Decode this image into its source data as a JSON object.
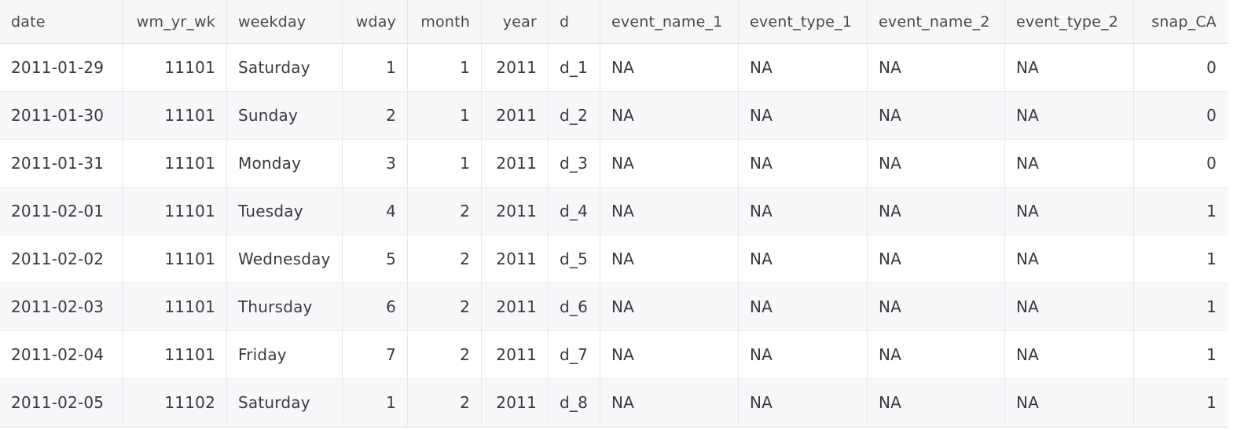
{
  "table": {
    "columns": [
      {
        "label": "date",
        "align": "left"
      },
      {
        "label": "wm_yr_wk",
        "align": "right"
      },
      {
        "label": "weekday",
        "align": "left"
      },
      {
        "label": "wday",
        "align": "right"
      },
      {
        "label": "month",
        "align": "right"
      },
      {
        "label": "year",
        "align": "right"
      },
      {
        "label": "d",
        "align": "left"
      },
      {
        "label": "event_name_1",
        "align": "left"
      },
      {
        "label": "event_type_1",
        "align": "left"
      },
      {
        "label": "event_name_2",
        "align": "left"
      },
      {
        "label": "event_type_2",
        "align": "left"
      },
      {
        "label": "snap_CA",
        "align": "right"
      }
    ],
    "rows": [
      [
        "2011-01-29",
        "11101",
        "Saturday",
        "1",
        "1",
        "2011",
        "d_1",
        "NA",
        "NA",
        "NA",
        "NA",
        "0"
      ],
      [
        "2011-01-30",
        "11101",
        "Sunday",
        "2",
        "1",
        "2011",
        "d_2",
        "NA",
        "NA",
        "NA",
        "NA",
        "0"
      ],
      [
        "2011-01-31",
        "11101",
        "Monday",
        "3",
        "1",
        "2011",
        "d_3",
        "NA",
        "NA",
        "NA",
        "NA",
        "0"
      ],
      [
        "2011-02-01",
        "11101",
        "Tuesday",
        "4",
        "2",
        "2011",
        "d_4",
        "NA",
        "NA",
        "NA",
        "NA",
        "1"
      ],
      [
        "2011-02-02",
        "11101",
        "Wednesday",
        "5",
        "2",
        "2011",
        "d_5",
        "NA",
        "NA",
        "NA",
        "NA",
        "1"
      ],
      [
        "2011-02-03",
        "11101",
        "Thursday",
        "6",
        "2",
        "2011",
        "d_6",
        "NA",
        "NA",
        "NA",
        "NA",
        "1"
      ],
      [
        "2011-02-04",
        "11101",
        "Friday",
        "7",
        "2",
        "2011",
        "d_7",
        "NA",
        "NA",
        "NA",
        "NA",
        "1"
      ],
      [
        "2011-02-05",
        "11102",
        "Saturday",
        "1",
        "2",
        "2011",
        "d_8",
        "NA",
        "NA",
        "NA",
        "NA",
        "1"
      ]
    ]
  }
}
